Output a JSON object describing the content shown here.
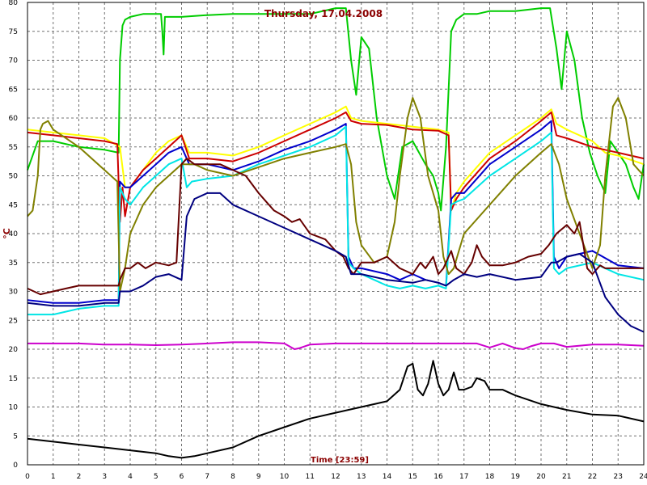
{
  "chart_data": {
    "type": "line",
    "title": "Thursday, 17.04.2008",
    "xlabel": "Time [23:59]",
    "ylabel": "°C",
    "xlim": [
      0,
      24
    ],
    "ylim": [
      0,
      80
    ],
    "x_ticks": [
      "0",
      "1",
      "2",
      "3",
      "4",
      "5",
      "6",
      "7",
      "8",
      "9",
      "10",
      "11",
      "12",
      "13",
      "14",
      "15",
      "16",
      "17",
      "18",
      "19",
      "20",
      "21",
      "22",
      "23",
      "24"
    ],
    "y_ticks": [
      "0",
      "5",
      "10",
      "15",
      "20",
      "25",
      "30",
      "35",
      "40",
      "45",
      "50",
      "55",
      "60",
      "65",
      "70",
      "75",
      "80"
    ],
    "grid": true,
    "series": [
      {
        "color": "#00cc00",
        "x": [
          0,
          0.4,
          1,
          2,
          3,
          3.55,
          3.6,
          3.7,
          3.8,
          4,
          4.5,
          5.2,
          5.25,
          5.3,
          5.35,
          6,
          7,
          8,
          9,
          10,
          11,
          12,
          12.4,
          12.6,
          12.8,
          13,
          13.3,
          13.6,
          14,
          14.3,
          14.6,
          15,
          15.5,
          15.8,
          16,
          16.1,
          16.3,
          16.5,
          16.7,
          17,
          17.5,
          18,
          19,
          20,
          20.35,
          20.6,
          20.8,
          21,
          21.3,
          21.6,
          21.9,
          22.2,
          22.5,
          22.7,
          23,
          23.3,
          23.6,
          23.8,
          24
        ],
        "y": [
          51,
          56,
          56,
          55,
          54.5,
          54,
          70,
          76,
          77,
          77.5,
          78,
          78,
          75,
          71,
          77.5,
          77.5,
          77.8,
          78,
          78,
          78,
          78,
          79,
          79,
          70,
          64,
          74,
          72,
          60,
          50,
          46,
          55,
          56,
          52,
          50,
          47,
          44,
          55,
          75,
          77,
          78,
          78,
          78.5,
          78.5,
          79,
          79,
          72,
          65,
          75,
          70,
          60,
          54,
          50,
          47,
          56,
          54,
          52,
          48,
          46,
          52
        ]
      },
      {
        "color": "#ffff00",
        "x": [
          0,
          1,
          2,
          3,
          3.6,
          3.8,
          4,
          4.5,
          5,
          5.5,
          6,
          6.3,
          7,
          8,
          9,
          10,
          11,
          12,
          12.4,
          12.6,
          13,
          14,
          15,
          16,
          16.4,
          16.5,
          16.7,
          17,
          18,
          19,
          20,
          20.4,
          20.6,
          21,
          22,
          22.5,
          23,
          24
        ],
        "y": [
          58,
          57.5,
          57,
          56.5,
          55,
          48,
          48,
          51,
          54,
          56,
          57,
          54,
          54,
          53.5,
          55,
          57,
          59,
          61,
          62,
          60,
          59.5,
          59,
          58.5,
          58,
          57.5,
          44,
          47,
          49,
          54,
          57,
          60,
          61.5,
          59,
          58,
          56,
          54,
          53.5,
          52
        ]
      },
      {
        "color": "#cc0000",
        "x": [
          0,
          1,
          2,
          3,
          3.5,
          3.6,
          3.7,
          3.8,
          4,
          4.5,
          5,
          5.5,
          6,
          6.3,
          7,
          8,
          9,
          10,
          11,
          12,
          12.4,
          12.6,
          13,
          14,
          15,
          16,
          16.4,
          16.5,
          16.7,
          17,
          18,
          19,
          20,
          20.4,
          20.6,
          21,
          22,
          23,
          24
        ],
        "y": [
          57.5,
          57,
          56.5,
          56,
          55.5,
          42,
          48,
          43,
          48,
          51,
          53,
          55,
          57,
          53,
          53,
          52.5,
          54,
          56,
          58,
          60,
          61,
          59.5,
          59,
          58.8,
          58,
          57.8,
          57,
          44,
          46,
          48,
          53,
          56,
          59.5,
          61,
          57,
          56.5,
          55,
          54,
          53
        ]
      },
      {
        "color": "#0000cc",
        "x": [
          0,
          1,
          2,
          3,
          3.55,
          3.6,
          3.8,
          4,
          4.5,
          5,
          5.5,
          6,
          6.3,
          7,
          8,
          9,
          10,
          11,
          12,
          12.4,
          12.5,
          12.7,
          13,
          13.5,
          14,
          14.5,
          15,
          15.5,
          16,
          16.3,
          16.5,
          16.7,
          17,
          18,
          19,
          20,
          20.4,
          20.5,
          20.7,
          21,
          22,
          23,
          24
        ],
        "y": [
          28.5,
          28,
          28,
          28.5,
          28.5,
          49,
          48,
          48,
          50,
          52,
          54,
          55,
          52,
          52,
          51,
          52.5,
          54.5,
          56,
          58,
          59,
          36,
          34,
          34,
          33.5,
          33,
          32,
          33,
          32,
          31.5,
          31,
          46,
          47,
          47,
          52,
          55,
          58,
          59.5,
          36,
          34,
          36,
          37,
          34.5,
          34
        ]
      },
      {
        "color": "#00e5e5",
        "x": [
          0,
          1,
          2,
          3,
          3.55,
          3.6,
          3.8,
          4,
          4.5,
          5,
          5.5,
          6,
          6.2,
          6.4,
          7,
          8,
          9,
          10,
          11,
          12,
          12.4,
          12.5,
          12.7,
          13,
          13.5,
          14,
          14.5,
          15,
          15.5,
          16,
          16.3,
          16.5,
          16.7,
          17,
          18,
          19,
          20,
          20.4,
          20.5,
          20.7,
          21,
          22,
          23,
          24
        ],
        "y": [
          26,
          26,
          27,
          27.5,
          27.5,
          48,
          46,
          45,
          48,
          50,
          52,
          53,
          48,
          49,
          49.5,
          50,
          52,
          53.5,
          55,
          57,
          58.5,
          35,
          34,
          33,
          32,
          31,
          30.5,
          31,
          30.5,
          31,
          30.5,
          45,
          45.5,
          46,
          50,
          53,
          56,
          57.5,
          34,
          33,
          34,
          35,
          33,
          32
        ]
      },
      {
        "color": "#808000",
        "x": [
          0,
          0.2,
          0.4,
          0.5,
          0.6,
          0.8,
          1,
          2,
          3,
          3.5,
          3.6,
          3.8,
          4,
          4.5,
          5,
          5.5,
          6,
          6.5,
          7,
          8,
          9,
          10,
          11,
          12,
          12.4,
          12.6,
          12.8,
          13,
          13.5,
          14,
          14.3,
          14.5,
          14.8,
          15,
          15.3,
          15.6,
          16,
          16.2,
          16.4,
          16.6,
          16.8,
          17,
          18,
          19,
          20,
          20.4,
          20.7,
          21,
          21.5,
          22,
          22.3,
          22.5,
          22.8,
          23,
          23.3,
          23.6,
          24
        ],
        "y": [
          43,
          44,
          50,
          58,
          59,
          59.5,
          58,
          55,
          51,
          49,
          30,
          34,
          40,
          45,
          48,
          50,
          52,
          52,
          51,
          50,
          51.5,
          53,
          54,
          55,
          55.5,
          52,
          42,
          38,
          35,
          36,
          42,
          50,
          60,
          63.5,
          60,
          50,
          44,
          36,
          33,
          34,
          37,
          40,
          45,
          50,
          54,
          55.5,
          52,
          46,
          40,
          34,
          38,
          50,
          62,
          63.5,
          60,
          52,
          50
        ]
      },
      {
        "color": "#660000",
        "x": [
          0,
          0.5,
          1,
          1.5,
          2,
          3,
          3.55,
          3.6,
          3.8,
          4,
          4.3,
          4.6,
          5,
          5.5,
          5.8,
          6,
          6.2,
          6.5,
          7,
          7.5,
          8,
          8.5,
          9,
          9.3,
          9.6,
          10,
          10.3,
          10.6,
          11,
          11.3,
          11.6,
          12,
          12.3,
          12.5,
          12.7,
          13,
          13.5,
          14,
          14.5,
          15,
          15.3,
          15.5,
          15.8,
          16,
          16.2,
          16.5,
          16.7,
          17,
          17.3,
          17.5,
          17.7,
          18,
          18.5,
          19,
          19.5,
          20,
          20.3,
          20.6,
          21,
          21.3,
          21.5,
          21.8,
          22,
          22.3,
          22.5,
          23,
          23.5,
          24
        ],
        "y": [
          30.5,
          29.5,
          30,
          30.5,
          31,
          31,
          31,
          32,
          34,
          34,
          35,
          34,
          35,
          34.5,
          35,
          52,
          53,
          52,
          52,
          52,
          51,
          50,
          47,
          45.5,
          44,
          43,
          42,
          42.5,
          40,
          39.5,
          39,
          37,
          36,
          34,
          33,
          35,
          35,
          36,
          34,
          33,
          35,
          34,
          36,
          33,
          34,
          37,
          34,
          33,
          35,
          38,
          36,
          34.5,
          34.5,
          35,
          36,
          36.5,
          38,
          40,
          41.5,
          40,
          42,
          34,
          33,
          34.5,
          34,
          34,
          34,
          34
        ]
      },
      {
        "color": "#000080",
        "x": [
          0,
          1,
          2,
          3,
          3.55,
          3.6,
          4,
          4.5,
          5,
          5.5,
          6,
          6.2,
          6.5,
          7,
          7.5,
          8,
          9,
          10,
          11,
          12,
          12.4,
          12.6,
          13,
          14,
          15,
          15.5,
          16,
          16.3,
          16.6,
          17,
          17.5,
          18,
          19,
          20,
          20.4,
          20.6,
          21,
          21.5,
          22,
          22.5,
          23,
          23.5,
          24
        ],
        "y": [
          28,
          27.5,
          27.5,
          28,
          28,
          30,
          30,
          31,
          32.5,
          33,
          32,
          43,
          46,
          47,
          47,
          45,
          43,
          41,
          39,
          37,
          36,
          33,
          33,
          32,
          31.5,
          32,
          31.5,
          31,
          32,
          33,
          32.5,
          33,
          32,
          32.5,
          35,
          35,
          36,
          36.5,
          35,
          29,
          26,
          24,
          23
        ]
      },
      {
        "color": "#cc00cc",
        "x": [
          0,
          1,
          2,
          3,
          4,
          5,
          6,
          7,
          8,
          9,
          10,
          10.4,
          10.6,
          11,
          12,
          13,
          14,
          15,
          16,
          17,
          17.5,
          18,
          18.5,
          19,
          19.3,
          19.6,
          20,
          20.5,
          21,
          22,
          23,
          24
        ],
        "y": [
          21,
          21,
          21,
          20.8,
          20.8,
          20.7,
          20.8,
          21,
          21.2,
          21.2,
          21,
          20,
          20.2,
          20.8,
          21,
          21,
          21,
          21,
          21,
          21,
          21,
          20.3,
          21,
          20.2,
          20,
          20.5,
          21,
          21,
          20.4,
          20.8,
          20.8,
          20.6
        ]
      },
      {
        "color": "#000000",
        "x": [
          0,
          1,
          2,
          3,
          4,
          5,
          5.5,
          6,
          6.5,
          7,
          8,
          9,
          10,
          11,
          12,
          13,
          14,
          14.5,
          14.8,
          15,
          15.2,
          15.4,
          15.6,
          15.8,
          16,
          16.2,
          16.4,
          16.6,
          16.8,
          17,
          17.3,
          17.5,
          17.8,
          18,
          18.5,
          19,
          20,
          21,
          22,
          23,
          24
        ],
        "y": [
          4.5,
          4,
          3.5,
          3,
          2.5,
          2,
          1.5,
          1.2,
          1.5,
          2,
          3,
          5,
          6.5,
          8,
          9,
          10,
          11,
          13,
          17,
          17.5,
          13,
          12,
          14,
          18,
          14,
          12,
          13,
          16,
          13,
          13,
          13.5,
          15,
          14.5,
          13,
          13,
          12,
          10.5,
          9.5,
          8.7,
          8.5,
          7.5
        ]
      }
    ]
  }
}
